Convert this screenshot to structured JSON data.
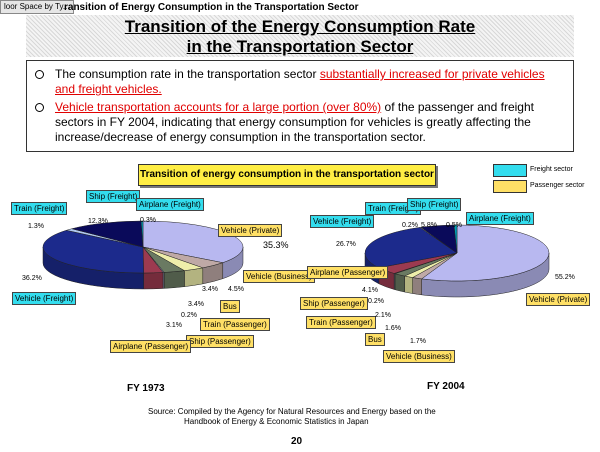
{
  "header": {
    "floor_tab": "loor Space by Ty...",
    "top_title": "ransition of Energy Consumption in the Transportation Sector"
  },
  "title": {
    "line1": "Transition of the Energy Consumption Rate",
    "line2": "in the Transportation Sector"
  },
  "bullets": [
    {
      "before": "The consumption rate in the transportation sector ",
      "highlight": "substantially increased for private vehicles and freight vehicles.",
      "after": ""
    },
    {
      "before": "",
      "highlight": "Vehicle transportation accounts for a large portion (over 80%)",
      "after": " of the passenger and freight sectors in FY 2004, indicating that energy consumption for vehicles is greatly affecting the increase/decrease of energy consumption in the transportation sector."
    }
  ],
  "chart_title": "Transition of energy consumption in the transportation sector",
  "legend": {
    "freight": "Freight sector",
    "passenger": "Passenger sector"
  },
  "colors": {
    "freight": "#33ddee",
    "passenger": "#ffe066",
    "vehicle_private": "#b8b8f0",
    "vehicle_freight": "#1c2a8c",
    "highlight_red": "#e00000"
  },
  "chart_data": [
    {
      "type": "pie",
      "title": "FY 1973",
      "slices": [
        {
          "label": "Vehicle (Private)",
          "value": 35.3,
          "sector": "Passenger"
        },
        {
          "label": "Vehicle (Business)",
          "value": 4.5,
          "sector": "Passenger"
        },
        {
          "label": "Bus",
          "value": 3.4,
          "sector": "Passenger"
        },
        {
          "label": "Train (Passenger)",
          "value": 3.4,
          "sector": "Passenger"
        },
        {
          "label": "Ship (Passenger)",
          "value": 0.2,
          "sector": "Passenger"
        },
        {
          "label": "Airplane (Passenger)",
          "value": 3.1,
          "sector": "Passenger"
        },
        {
          "label": "Vehicle (Freight)",
          "value": 36.2,
          "sector": "Freight"
        },
        {
          "label": "Train (Freight)",
          "value": 1.3,
          "sector": "Freight"
        },
        {
          "label": "Ship (Freight)",
          "value": 12.3,
          "sector": "Freight"
        },
        {
          "label": "Airplane (Freight)",
          "value": 0.3,
          "sector": "Freight"
        }
      ],
      "value_labels": [
        "35.3%",
        "4.5%",
        "3.4%",
        "3.4%",
        "0.2%",
        "3.1%",
        "36.2%",
        "1.3%",
        "12.3%",
        "0.3%"
      ]
    },
    {
      "type": "pie",
      "title": "FY 2004",
      "slices": [
        {
          "label": "Vehicle (Private)",
          "value": 55.2,
          "sector": "Passenger"
        },
        {
          "label": "Vehicle (Business)",
          "value": 1.7,
          "sector": "Passenger"
        },
        {
          "label": "Bus",
          "value": 1.6,
          "sector": "Passenger"
        },
        {
          "label": "Train (Passenger)",
          "value": 2.1,
          "sector": "Passenger"
        },
        {
          "label": "Ship (Passenger)",
          "value": 0.2,
          "sector": "Passenger"
        },
        {
          "label": "Airplane (Passenger)",
          "value": 4.1,
          "sector": "Passenger"
        },
        {
          "label": "Vehicle (Freight)",
          "value": 26.7,
          "sector": "Freight"
        },
        {
          "label": "Train (Freight)",
          "value": 0.2,
          "sector": "Freight"
        },
        {
          "label": "Ship (Freight)",
          "value": 5.8,
          "sector": "Freight"
        },
        {
          "label": "Airplane (Freight)",
          "value": 0.5,
          "sector": "Freight"
        }
      ],
      "value_labels": [
        "55.2%",
        "1.7%",
        "1.6%",
        "2.1%",
        "0.2%",
        "4.1%",
        "26.7%",
        "0.2%",
        "5.8%",
        "0.5%"
      ]
    }
  ],
  "source": {
    "line1": "Source:  Compiled by the Agency for Natural Resources and Energy based on the",
    "line2": "Handbook of Energy & Economic Statistics in Japan"
  },
  "page_number": "20"
}
